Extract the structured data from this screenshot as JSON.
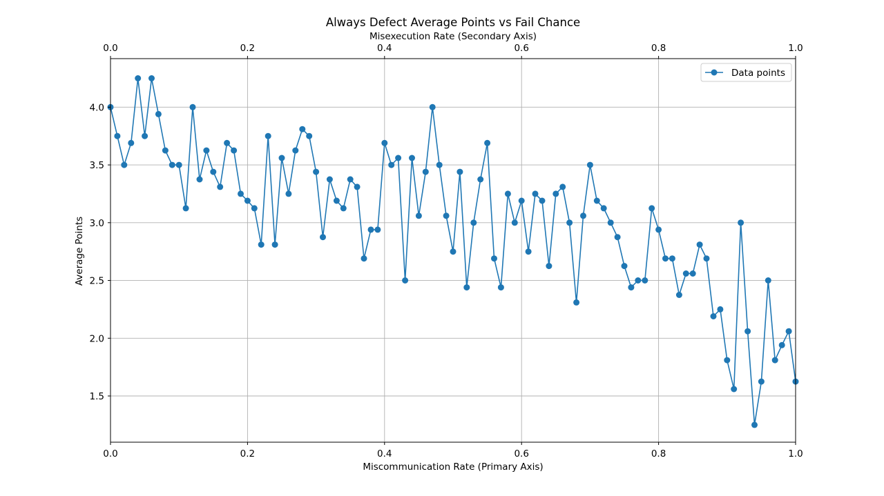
{
  "chart_data": {
    "type": "line",
    "title": "Always Defect Average Points vs Fail Chance",
    "xlabel": "Miscommunication Rate (Primary Axis)",
    "x2label": "Misexecution Rate (Secondary Axis)",
    "ylabel": "Average Points",
    "xlim": [
      0.0,
      1.0
    ],
    "x2lim": [
      0.0,
      1.0
    ],
    "ylim": [
      1.1,
      4.42
    ],
    "x_ticks": [
      "0.0",
      "0.2",
      "0.4",
      "0.6",
      "0.8",
      "1.0"
    ],
    "x2_ticks": [
      "0.0",
      "0.2",
      "0.4",
      "0.6",
      "0.8",
      "1.0"
    ],
    "y_ticks": [
      "1.5",
      "2.0",
      "2.5",
      "3.0",
      "3.5",
      "4.0"
    ],
    "grid": true,
    "legend_position": "top-right",
    "series": [
      {
        "name": "Data points",
        "color": "#1f77b4",
        "marker": "circle",
        "x": [
          0.0,
          0.01,
          0.02,
          0.03,
          0.04,
          0.05,
          0.06,
          0.07,
          0.08,
          0.09,
          0.1,
          0.11,
          0.12,
          0.13,
          0.14,
          0.15,
          0.16,
          0.17,
          0.18,
          0.19,
          0.2,
          0.21,
          0.22,
          0.23,
          0.24,
          0.25,
          0.26,
          0.27,
          0.28,
          0.29,
          0.3,
          0.31,
          0.32,
          0.33,
          0.34,
          0.35,
          0.36,
          0.37,
          0.38,
          0.39,
          0.4,
          0.41,
          0.42,
          0.43,
          0.44,
          0.45,
          0.46,
          0.47,
          0.48,
          0.49,
          0.5,
          0.51,
          0.52,
          0.53,
          0.54,
          0.55,
          0.56,
          0.57,
          0.58,
          0.59,
          0.6,
          0.61,
          0.62,
          0.63,
          0.64,
          0.65,
          0.66,
          0.67,
          0.68,
          0.69,
          0.7,
          0.71,
          0.72,
          0.73,
          0.74,
          0.75,
          0.76,
          0.77,
          0.78,
          0.79,
          0.8,
          0.81,
          0.82,
          0.83,
          0.84,
          0.85,
          0.86,
          0.87,
          0.88,
          0.89,
          0.9,
          0.91,
          0.92,
          0.93,
          0.94,
          0.95,
          0.96,
          0.97,
          0.98,
          0.99,
          1.0
        ],
        "y": [
          4.0,
          3.75,
          3.5,
          3.69,
          4.25,
          3.75,
          4.25,
          3.94,
          3.625,
          3.5,
          3.5,
          3.125,
          4.0,
          3.375,
          3.625,
          3.44,
          3.31,
          3.69,
          3.625,
          3.25,
          3.19,
          3.125,
          2.81,
          3.75,
          2.81,
          3.56,
          3.25,
          3.625,
          3.81,
          3.75,
          3.44,
          2.875,
          3.375,
          3.19,
          3.125,
          3.375,
          3.31,
          2.69,
          2.94,
          2.94,
          3.69,
          3.5,
          3.56,
          2.5,
          3.56,
          3.06,
          3.44,
          4.0,
          3.5,
          3.06,
          2.75,
          3.44,
          2.44,
          3.0,
          3.375,
          3.69,
          2.69,
          2.44,
          3.25,
          3.0,
          3.19,
          2.75,
          3.25,
          3.19,
          2.625,
          3.25,
          3.31,
          3.0,
          2.31,
          3.06,
          3.5,
          3.19,
          3.125,
          3.0,
          2.875,
          2.625,
          2.44,
          2.5,
          2.5,
          3.125,
          2.94,
          2.69,
          2.69,
          2.375,
          2.56,
          2.56,
          2.81,
          2.69,
          2.19,
          2.25,
          1.81,
          1.56,
          3.0,
          2.06,
          1.25,
          1.625,
          2.5,
          1.81,
          1.94,
          2.06,
          1.625
        ]
      }
    ]
  }
}
